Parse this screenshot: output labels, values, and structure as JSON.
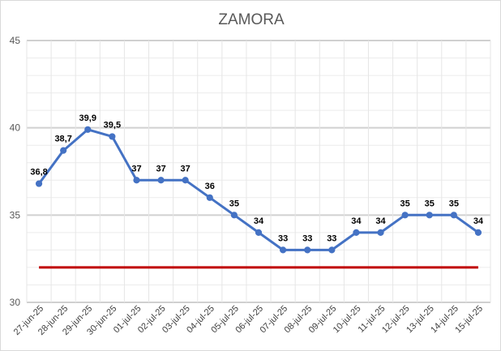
{
  "chart_data": {
    "type": "line",
    "title": "ZAMORA",
    "xlabel": "",
    "ylabel": "",
    "ylim": [
      30,
      45
    ],
    "yticks": [
      30,
      35,
      40,
      45
    ],
    "grid": "on",
    "legend": "none",
    "categories": [
      "27-jun-25",
      "28-jun-25",
      "29-jun-25",
      "30-jun-25",
      "01-jul-25",
      "02-jul-25",
      "03-jul-25",
      "04-jul-25",
      "05-jul-25",
      "06-jul-25",
      "07-jul-25",
      "08-jul-25",
      "09-jul-25",
      "10-jul-25",
      "11-jul-25",
      "12-jul-25",
      "13-jul-25",
      "14-jul-25",
      "15-jul-25"
    ],
    "series": [
      {
        "values": [
          36.8,
          38.7,
          39.9,
          39.5,
          37,
          37,
          37,
          36,
          35,
          34,
          33,
          33,
          33,
          34,
          34,
          35,
          35,
          35,
          34
        ],
        "labels": [
          "36,8",
          "38,7",
          "39,9",
          "39,5",
          "37",
          "37",
          "37",
          "36",
          "35",
          "34",
          "33",
          "33",
          "33",
          "34",
          "34",
          "35",
          "35",
          "35",
          "34"
        ],
        "color": "#4472c4",
        "markers": true
      },
      {
        "values": [
          32,
          32,
          32,
          32,
          32,
          32,
          32,
          32,
          32,
          32,
          32,
          32,
          32,
          32,
          32,
          32,
          32,
          32,
          32
        ],
        "color": "#c00000",
        "markers": false
      }
    ]
  }
}
